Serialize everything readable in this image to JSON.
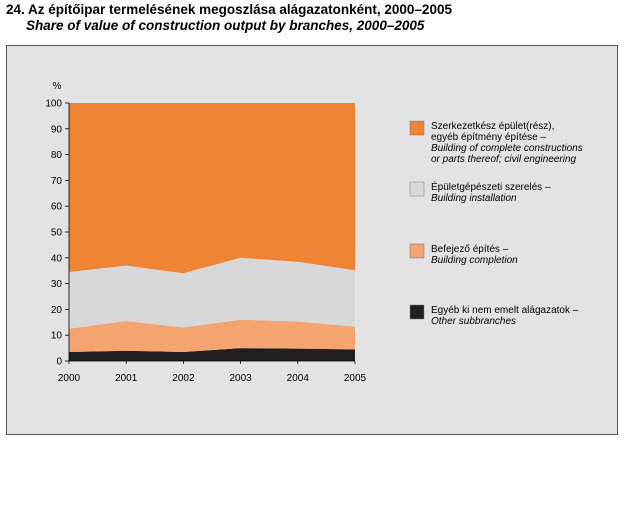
{
  "header": {
    "title": "24. Az építőipar termelésének megoszlása alágazatonként, 2000–2005",
    "subtitle": "Share of value of construction output by branches, 2000–2005"
  },
  "chart_data": {
    "type": "area",
    "stacked": true,
    "ylabel": "%",
    "ylim": [
      0,
      100
    ],
    "yticks": [
      "0",
      "10",
      "20",
      "30",
      "40",
      "50",
      "60",
      "70",
      "80",
      "90",
      "100"
    ],
    "categories": [
      "2000",
      "2001",
      "2002",
      "2003",
      "2004",
      "2005"
    ],
    "grid": false,
    "legend_position": "right",
    "series": [
      {
        "name": "Egyéb ki nem emelt alágazatok – Other subbranches",
        "label_hu": "Egyéb ki nem emelt alágazatok –",
        "label_en": "Other subbranches",
        "color": "#231f20",
        "values": [
          3.5,
          4.0,
          3.5,
          5.0,
          4.8,
          4.5
        ]
      },
      {
        "name": "Befejező építés – Building completion",
        "label_hu": "Befejező építés –",
        "label_en": "Building completion",
        "color": "#f4a46e",
        "values": [
          9.0,
          11.5,
          9.5,
          11.0,
          10.5,
          8.8
        ]
      },
      {
        "name": "Épületgépészeti szerelés – Building installation",
        "label_hu": "Épületgépészeti szerelés –",
        "label_en": "Building installation",
        "color": "#d8d8d9",
        "values": [
          22.0,
          21.5,
          21.0,
          24.0,
          23.2,
          21.9
        ]
      },
      {
        "name": "Szerkezetkész épület(rész), egyéb építmény építése – Building of complete constructions or parts thereof; civil engineering",
        "label_hu": "Szerkezetkész épület(rész), egyéb építmény építése –",
        "label_hu_lines": [
          "Szerkezetkész épület(rész),",
          "egyéb építmény építése –"
        ],
        "label_en_lines": [
          "Building of complete constructions",
          "or parts thereof; civil engineering"
        ],
        "color": "#ef8534",
        "values": [
          65.5,
          63.0,
          66.0,
          60.0,
          61.5,
          64.8
        ]
      }
    ]
  }
}
